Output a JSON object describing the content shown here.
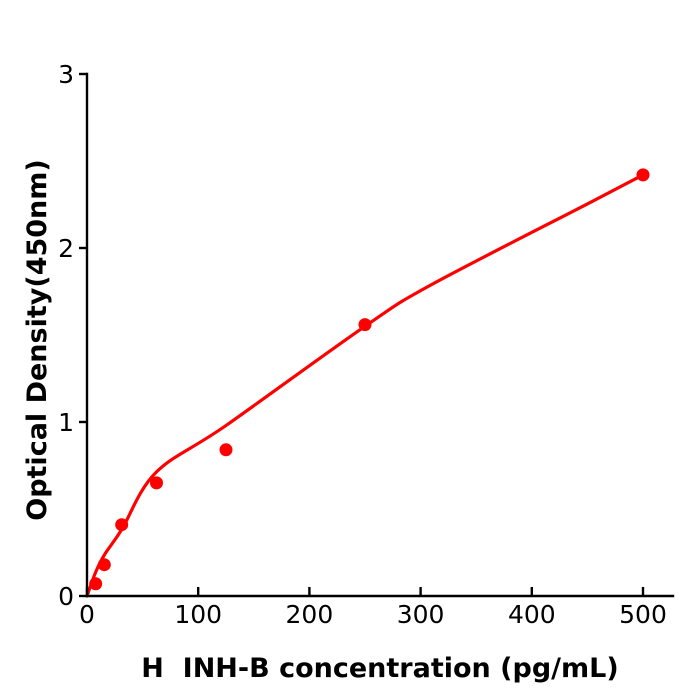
{
  "figure": {
    "background_color": "#ffffff"
  },
  "chart_data": {
    "type": "scatter",
    "title": "",
    "xlabel": "H  INH-B concentration (pg/mL)",
    "ylabel": "Optical Density(450nm)",
    "x_ticks": [
      0,
      100,
      200,
      300,
      400,
      500
    ],
    "y_ticks": [
      0,
      1,
      2,
      3
    ],
    "xlim": [
      0,
      527
    ],
    "ylim": [
      0,
      3
    ],
    "grid": false,
    "legend": "none",
    "axis_color": "#000000",
    "marker_color": "#ff0000",
    "line_color": "#ff0000",
    "points": {
      "x": [
        7.8,
        15.6,
        31.2,
        62.5,
        125,
        250,
        500
      ],
      "y": [
        0.07,
        0.18,
        0.41,
        0.65,
        0.84,
        1.56,
        2.42
      ]
    },
    "fit_curve": {
      "description": "smooth concave standard-curve fit from origin to last point",
      "anchors_x": [
        0,
        8,
        16,
        31,
        62,
        125,
        250,
        310,
        452,
        500
      ],
      "anchors_y": [
        0.0,
        0.14,
        0.24,
        0.38,
        0.71,
        0.98,
        1.55,
        1.79,
        2.26,
        2.42
      ]
    }
  }
}
